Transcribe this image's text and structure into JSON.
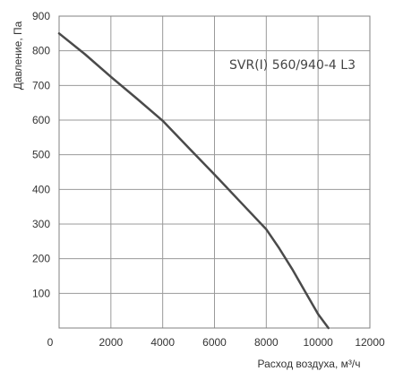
{
  "chart_data": {
    "type": "line",
    "title": "",
    "annotation": "SVR(I) 560/940-4 L3",
    "xlabel": "Расход воздуха, м³/ч",
    "ylabel": "Давление, Па",
    "xlim": [
      0,
      12000
    ],
    "ylim": [
      0,
      900
    ],
    "x_ticks": [
      0,
      2000,
      4000,
      6000,
      8000,
      10000,
      12000
    ],
    "y_ticks": [
      100,
      200,
      300,
      400,
      500,
      600,
      700,
      800,
      900
    ],
    "grid": true,
    "legend": "none",
    "series": [
      {
        "color": "#4a4a4a",
        "x": [
          0,
          1000,
          2000,
          3000,
          4000,
          5000,
          6000,
          7000,
          8000,
          8500,
          9000,
          9500,
          10000,
          10400
        ],
        "y": [
          850,
          790,
          725,
          662,
          598,
          520,
          443,
          364,
          285,
          230,
          170,
          105,
          40,
          0
        ]
      }
    ]
  }
}
